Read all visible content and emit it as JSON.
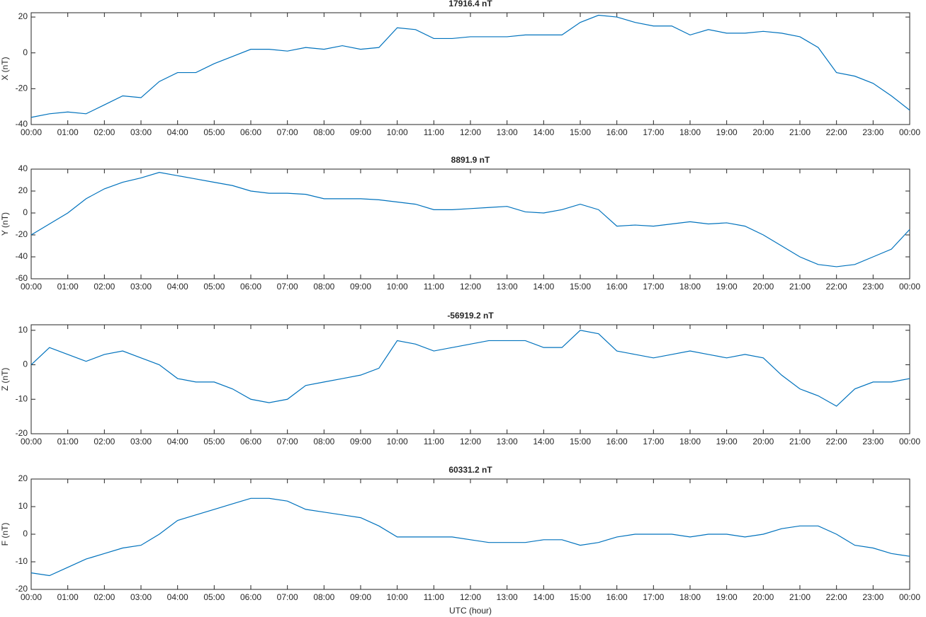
{
  "chart_data": [
    {
      "type": "line",
      "title": "17916.4 nT",
      "ylabel": "X (nT)",
      "color": "#0072bd",
      "xlim": [
        0,
        24
      ],
      "ylim": [
        -40,
        22.4
      ],
      "yticks": [
        -40,
        -20,
        0,
        20
      ],
      "xticks": [
        {
          "value": 0,
          "label": "00:00"
        },
        {
          "value": 1,
          "label": "01:00"
        },
        {
          "value": 2,
          "label": "02:00"
        },
        {
          "value": 3,
          "label": "03:00"
        },
        {
          "value": 4,
          "label": "04:00"
        },
        {
          "value": 5,
          "label": "05:00"
        },
        {
          "value": 6,
          "label": "06:00"
        },
        {
          "value": 7,
          "label": "07:00"
        },
        {
          "value": 8,
          "label": "08:00"
        },
        {
          "value": 9,
          "label": "09:00"
        },
        {
          "value": 10,
          "label": "10:00"
        },
        {
          "value": 11,
          "label": "11:00"
        },
        {
          "value": 12,
          "label": "12:00"
        },
        {
          "value": 13,
          "label": "13:00"
        },
        {
          "value": 14,
          "label": "14:00"
        },
        {
          "value": 15,
          "label": "15:00"
        },
        {
          "value": 16,
          "label": "16:00"
        },
        {
          "value": 17,
          "label": "17:00"
        },
        {
          "value": 18,
          "label": "18:00"
        },
        {
          "value": 19,
          "label": "19:00"
        },
        {
          "value": 20,
          "label": "20:00"
        },
        {
          "value": 21,
          "label": "21:00"
        },
        {
          "value": 22,
          "label": "22:00"
        },
        {
          "value": 23,
          "label": "23:00"
        },
        {
          "value": 24,
          "label": "00:00"
        }
      ],
      "x": [
        0,
        0.5,
        1,
        1.5,
        2,
        2.5,
        3,
        3.5,
        4,
        4.5,
        5,
        5.5,
        6,
        6.5,
        7,
        7.5,
        8,
        8.5,
        9,
        9.5,
        10,
        10.5,
        11,
        11.5,
        12,
        12.5,
        13,
        13.5,
        14,
        14.5,
        15,
        15.5,
        16,
        16.5,
        17,
        17.5,
        18,
        18.5,
        19,
        19.5,
        20,
        20.5,
        21,
        21.5,
        22,
        22.5,
        23,
        23.5,
        24
      ],
      "values": [
        -36,
        -34,
        -33,
        -34,
        -29,
        -24,
        -25,
        -16,
        -11,
        -11,
        -6,
        -2,
        2,
        2,
        1,
        3,
        2,
        4,
        2,
        3,
        14,
        13,
        8,
        8,
        9,
        9,
        9,
        10,
        10,
        10,
        17,
        21,
        20,
        17,
        15,
        15,
        10,
        13,
        11,
        11,
        12,
        11,
        9,
        3,
        -11,
        -13,
        -17,
        -24,
        -32
      ]
    },
    {
      "type": "line",
      "title": "8891.9 nT",
      "ylabel": "Y (nT)",
      "color": "#0072bd",
      "xlim": [
        0,
        24
      ],
      "ylim": [
        -60,
        40
      ],
      "yticks": [
        -60,
        -40,
        -20,
        0,
        20,
        40
      ],
      "xticks": [
        {
          "value": 0,
          "label": "00:00"
        },
        {
          "value": 1,
          "label": "01:00"
        },
        {
          "value": 2,
          "label": "02:00"
        },
        {
          "value": 3,
          "label": "03:00"
        },
        {
          "value": 4,
          "label": "04:00"
        },
        {
          "value": 5,
          "label": "05:00"
        },
        {
          "value": 6,
          "label": "06:00"
        },
        {
          "value": 7,
          "label": "07:00"
        },
        {
          "value": 8,
          "label": "08:00"
        },
        {
          "value": 9,
          "label": "09:00"
        },
        {
          "value": 10,
          "label": "10:00"
        },
        {
          "value": 11,
          "label": "11:00"
        },
        {
          "value": 12,
          "label": "12:00"
        },
        {
          "value": 13,
          "label": "13:00"
        },
        {
          "value": 14,
          "label": "14:00"
        },
        {
          "value": 15,
          "label": "15:00"
        },
        {
          "value": 16,
          "label": "16:00"
        },
        {
          "value": 17,
          "label": "17:00"
        },
        {
          "value": 18,
          "label": "18:00"
        },
        {
          "value": 19,
          "label": "19:00"
        },
        {
          "value": 20,
          "label": "20:00"
        },
        {
          "value": 21,
          "label": "21:00"
        },
        {
          "value": 22,
          "label": "22:00"
        },
        {
          "value": 23,
          "label": "23:00"
        },
        {
          "value": 24,
          "label": "00:00"
        }
      ],
      "x": [
        0,
        0.5,
        1,
        1.5,
        2,
        2.5,
        3,
        3.5,
        4,
        4.5,
        5,
        5.5,
        6,
        6.5,
        7,
        7.5,
        8,
        8.5,
        9,
        9.5,
        10,
        10.5,
        11,
        11.5,
        12,
        12.5,
        13,
        13.5,
        14,
        14.5,
        15,
        15.5,
        16,
        16.5,
        17,
        17.5,
        18,
        18.5,
        19,
        19.5,
        20,
        20.5,
        21,
        21.5,
        22,
        22.5,
        23,
        23.5,
        24
      ],
      "values": [
        -20,
        -10,
        0,
        13,
        22,
        28,
        32,
        37,
        34,
        31,
        28,
        25,
        20,
        18,
        18,
        17,
        13,
        13,
        13,
        12,
        10,
        8,
        3,
        3,
        4,
        5,
        6,
        1,
        0,
        3,
        8,
        3,
        -12,
        -11,
        -12,
        -10,
        -8,
        -10,
        -9,
        -12,
        -20,
        -30,
        -40,
        -47,
        -49,
        -47,
        -40,
        -33,
        -15
      ]
    },
    {
      "type": "line",
      "title": "-56919.2 nT",
      "ylabel": "Z (nT)",
      "color": "#0072bd",
      "xlim": [
        0,
        24
      ],
      "ylim": [
        -20,
        11.6
      ],
      "yticks": [
        -20,
        -10,
        0,
        10
      ],
      "xticks": [
        {
          "value": 0,
          "label": "00:00"
        },
        {
          "value": 1,
          "label": "01:00"
        },
        {
          "value": 2,
          "label": "02:00"
        },
        {
          "value": 3,
          "label": "03:00"
        },
        {
          "value": 4,
          "label": "04:00"
        },
        {
          "value": 5,
          "label": "05:00"
        },
        {
          "value": 6,
          "label": "06:00"
        },
        {
          "value": 7,
          "label": "07:00"
        },
        {
          "value": 8,
          "label": "08:00"
        },
        {
          "value": 9,
          "label": "09:00"
        },
        {
          "value": 10,
          "label": "10:00"
        },
        {
          "value": 11,
          "label": "11:00"
        },
        {
          "value": 12,
          "label": "12:00"
        },
        {
          "value": 13,
          "label": "13:00"
        },
        {
          "value": 14,
          "label": "14:00"
        },
        {
          "value": 15,
          "label": "15:00"
        },
        {
          "value": 16,
          "label": "16:00"
        },
        {
          "value": 17,
          "label": "17:00"
        },
        {
          "value": 18,
          "label": "18:00"
        },
        {
          "value": 19,
          "label": "19:00"
        },
        {
          "value": 20,
          "label": "20:00"
        },
        {
          "value": 21,
          "label": "21:00"
        },
        {
          "value": 22,
          "label": "22:00"
        },
        {
          "value": 23,
          "label": "23:00"
        },
        {
          "value": 24,
          "label": "00:00"
        }
      ],
      "x": [
        0,
        0.5,
        1,
        1.5,
        2,
        2.5,
        3,
        3.5,
        4,
        4.5,
        5,
        5.5,
        6,
        6.5,
        7,
        7.5,
        8,
        8.5,
        9,
        9.5,
        10,
        10.5,
        11,
        11.5,
        12,
        12.5,
        13,
        13.5,
        14,
        14.5,
        15,
        15.5,
        16,
        16.5,
        17,
        17.5,
        18,
        18.5,
        19,
        19.5,
        20,
        20.5,
        21,
        21.5,
        22,
        22.5,
        23,
        23.5,
        24
      ],
      "values": [
        0,
        5,
        3,
        1,
        3,
        4,
        2,
        0,
        -4,
        -5,
        -5,
        -7,
        -10,
        -11,
        -10,
        -6,
        -5,
        -4,
        -3,
        -1,
        7,
        6,
        4,
        5,
        6,
        7,
        7,
        7,
        5,
        5,
        10,
        9,
        4,
        3,
        2,
        3,
        4,
        3,
        2,
        3,
        2,
        -3,
        -7,
        -9,
        -12,
        -7,
        -5,
        -5,
        -4
      ]
    },
    {
      "type": "line",
      "title": "60331.2 nT",
      "ylabel": "F (nT)",
      "xlabel": "UTC (hour)",
      "color": "#0072bd",
      "xlim": [
        0,
        24
      ],
      "ylim": [
        -20,
        20
      ],
      "yticks": [
        -20,
        -10,
        0,
        10,
        20
      ],
      "xticks": [
        {
          "value": 0,
          "label": "00:00"
        },
        {
          "value": 1,
          "label": "01:00"
        },
        {
          "value": 2,
          "label": "02:00"
        },
        {
          "value": 3,
          "label": "03:00"
        },
        {
          "value": 4,
          "label": "04:00"
        },
        {
          "value": 5,
          "label": "05:00"
        },
        {
          "value": 6,
          "label": "06:00"
        },
        {
          "value": 7,
          "label": "07:00"
        },
        {
          "value": 8,
          "label": "08:00"
        },
        {
          "value": 9,
          "label": "09:00"
        },
        {
          "value": 10,
          "label": "10:00"
        },
        {
          "value": 11,
          "label": "11:00"
        },
        {
          "value": 12,
          "label": "12:00"
        },
        {
          "value": 13,
          "label": "13:00"
        },
        {
          "value": 14,
          "label": "14:00"
        },
        {
          "value": 15,
          "label": "15:00"
        },
        {
          "value": 16,
          "label": "16:00"
        },
        {
          "value": 17,
          "label": "17:00"
        },
        {
          "value": 18,
          "label": "18:00"
        },
        {
          "value": 19,
          "label": "19:00"
        },
        {
          "value": 20,
          "label": "20:00"
        },
        {
          "value": 21,
          "label": "21:00"
        },
        {
          "value": 22,
          "label": "22:00"
        },
        {
          "value": 23,
          "label": "23:00"
        },
        {
          "value": 24,
          "label": "00:00"
        }
      ],
      "x": [
        0,
        0.5,
        1,
        1.5,
        2,
        2.5,
        3,
        3.5,
        4,
        4.5,
        5,
        5.5,
        6,
        6.5,
        7,
        7.5,
        8,
        8.5,
        9,
        9.5,
        10,
        10.5,
        11,
        11.5,
        12,
        12.5,
        13,
        13.5,
        14,
        14.5,
        15,
        15.5,
        16,
        16.5,
        17,
        17.5,
        18,
        18.5,
        19,
        19.5,
        20,
        20.5,
        21,
        21.5,
        22,
        22.5,
        23,
        23.5,
        24
      ],
      "values": [
        -14,
        -15,
        -12,
        -9,
        -7,
        -5,
        -4,
        0,
        5,
        7,
        9,
        11,
        13,
        13,
        12,
        9,
        8,
        7,
        6,
        3,
        -1,
        -1,
        -1,
        -1,
        -2,
        -3,
        -3,
        -3,
        -2,
        -2,
        -4,
        -3,
        -1,
        0,
        0,
        0,
        -1,
        0,
        0,
        -1,
        0,
        2,
        3,
        3,
        0,
        -4,
        -5,
        -7,
        -8
      ]
    }
  ]
}
